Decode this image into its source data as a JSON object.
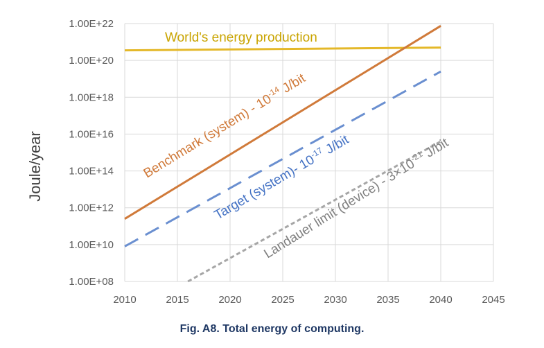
{
  "chart_data": {
    "type": "line",
    "ylabel": "Joule/year",
    "yscale": "log",
    "xlim": [
      2010,
      2045
    ],
    "ylim": [
      100000000.0,
      1e+22
    ],
    "x_ticks": [
      2010,
      2015,
      2020,
      2025,
      2030,
      2035,
      2040,
      2045
    ],
    "x_tick_labels": [
      "2010",
      "2015",
      "2020",
      "2025",
      "2030",
      "2035",
      "2040",
      "2045"
    ],
    "y_ticks": [
      100000000.0,
      10000000000.0,
      1000000000000.0,
      100000000000000.0,
      1e+16,
      1e+18,
      1e+20,
      1e+22
    ],
    "y_tick_labels": [
      "1.00E+08",
      "1.00E+10",
      "1.00E+12",
      "1.00E+14",
      "1.00E+16",
      "1.00E+18",
      "1.00E+20",
      "1.00E+22"
    ],
    "grid": true,
    "series": [
      {
        "name": "World's energy production",
        "color": "#e4b829",
        "style": "solid",
        "x": [
          2010,
          2040
        ],
        "y": [
          3.5e+20,
          5e+20
        ]
      },
      {
        "name": "Benchmark (system)",
        "color": "#d07a3a",
        "style": "solid",
        "x": [
          2010,
          2040
        ],
        "y": [
          250000000000.0,
          7.5e+21
        ]
      },
      {
        "name": "Target (system)",
        "color": "#6a8fd0",
        "style": "dashed",
        "x": [
          2010,
          2040
        ],
        "y": [
          8000000000.0,
          2.5e+19
        ]
      },
      {
        "name": "Landauer limit (device)",
        "color": "#a6a6a6",
        "style": "dotted",
        "x": [
          2016,
          2040
        ],
        "y": [
          100000000.0,
          4000000000000000.0
        ]
      }
    ],
    "annotations": [
      {
        "text": "World's energy production",
        "series": 0
      },
      {
        "text": "Benchmark (system) - 10",
        "sup": "-14",
        "tail": " J/bit",
        "series": 1
      },
      {
        "text": "Target (system)- 10",
        "sup": "-17",
        "tail": " J/bit",
        "series": 2
      },
      {
        "text": "Landauer limit (device) - 3×10",
        "sup": "-21",
        "tail": " J/bit",
        "series": 3
      }
    ]
  },
  "caption": "Fig. A8. Total energy of computing."
}
